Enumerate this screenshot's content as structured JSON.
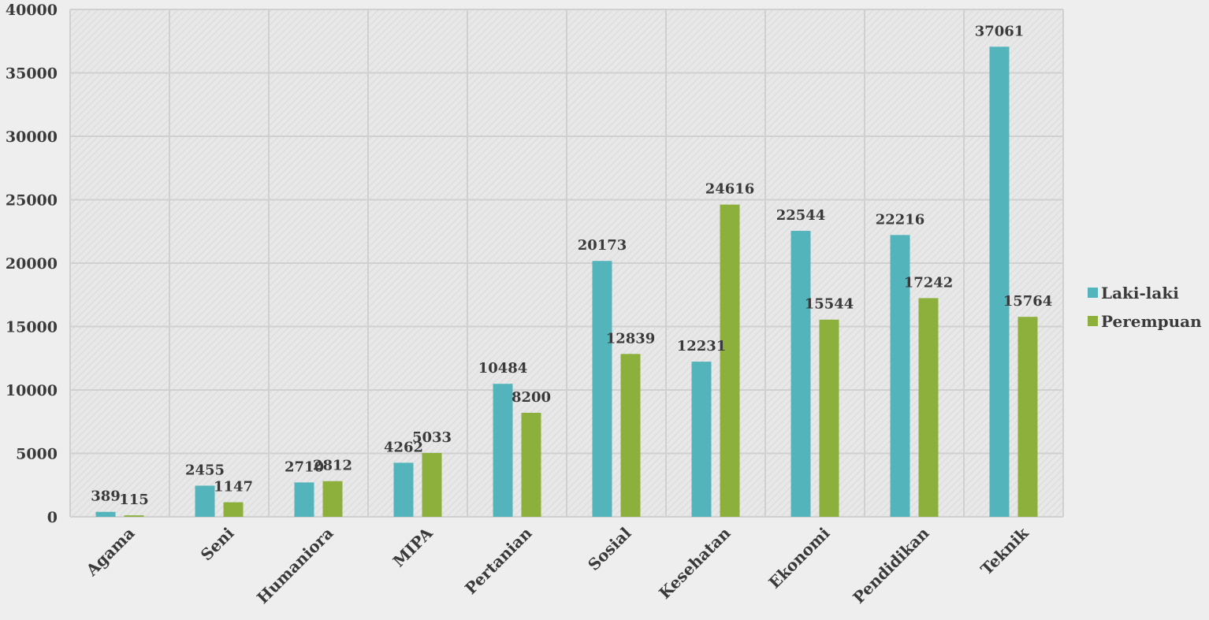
{
  "chart_data": {
    "type": "bar",
    "title": "",
    "xlabel": "",
    "ylabel": "",
    "categories": [
      "Agama",
      "Seni",
      "Humaniora",
      "MIPA",
      "Pertanian",
      "Sosial",
      "Kesehatan",
      "Ekonomi",
      "Pendidikan",
      "Teknik"
    ],
    "series": [
      {
        "name": "Laki-laki",
        "color": "#54b4bb",
        "values": [
          389,
          2455,
          2710,
          4262,
          10484,
          20173,
          12231,
          22544,
          22216,
          37061
        ],
        "labels": [
          "389",
          "2455",
          "2710",
          "4262",
          "10484",
          "20173",
          "12231",
          "22544",
          "22216",
          "37061"
        ]
      },
      {
        "name": "Perempuan",
        "color": "#8db03c",
        "values": [
          115,
          1147,
          2812,
          5033,
          8200,
          12839,
          24616,
          15544,
          17242,
          15764
        ],
        "labels": [
          "115",
          "1147",
          "2812",
          "5033",
          "8200",
          "12839",
          "24616",
          "15544",
          "17242",
          "15764"
        ]
      }
    ],
    "ylim": [
      0,
      40000
    ],
    "yticks": [
      0,
      5000,
      10000,
      15000,
      20000,
      25000,
      30000,
      35000,
      40000
    ],
    "ytick_labels": [
      "0",
      "5000",
      "10000",
      "15000",
      "20000",
      "25000",
      "30000",
      "35000",
      "40000"
    ],
    "grid": true,
    "legend_position": "right",
    "plot_background": "#e6e6e6",
    "grid_color": "#d0d0d0"
  }
}
